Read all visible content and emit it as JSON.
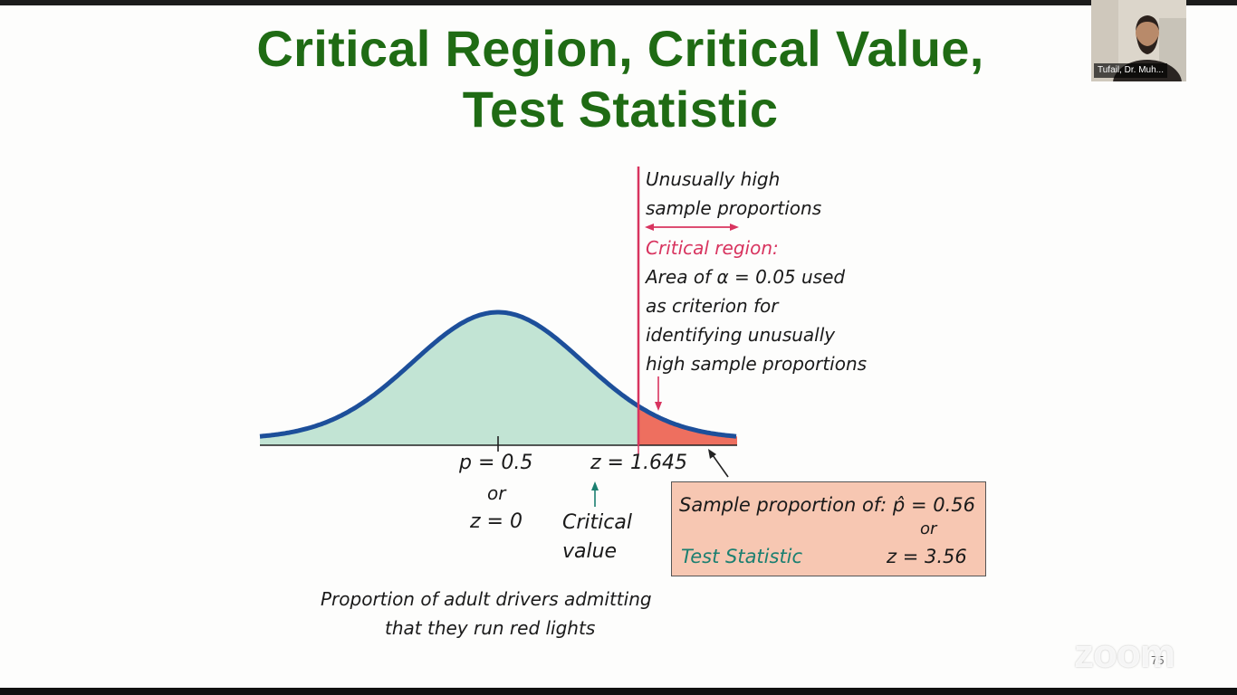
{
  "slide": {
    "title_line1": "Critical Region, Critical Value,",
    "title_line2": "Test Statistic",
    "annotation": {
      "line1": "Unusually high",
      "line2": "sample proportions",
      "critical_region_label": "Critical region:",
      "line3": "Area of α = 0.05 used",
      "line4": "as criterion for",
      "line5": "identifying unusually",
      "line6": "high sample proportions"
    },
    "axis": {
      "center_label": "p = 0.5",
      "center_or": "or",
      "center_z": "z = 0",
      "critical_z": "z = 1.645",
      "critical_caption_1": "Critical",
      "critical_caption_2": "value"
    },
    "box": {
      "line1": "Sample proportion of: p̂ = 0.56",
      "or": "or",
      "test_statistic_label": "Test Statistic",
      "z_value": "z = 3.56"
    },
    "caption_line1": "Proportion of adult drivers admitting",
    "caption_line2": "that they run red lights",
    "page_number": "75"
  },
  "chart_data": {
    "type": "area",
    "distribution": "standard normal",
    "critical_z": 1.645,
    "alpha": 0.05,
    "center_z": 0,
    "colors": {
      "body_fill": "#c2e4d4",
      "tail_fill": "#ee6f5f",
      "curve": "#1d4f9a",
      "critical_line": "#d8345f"
    }
  },
  "meeting": {
    "participant_name": "Tufail, Dr. Muh...",
    "app_logo": "zoom"
  }
}
